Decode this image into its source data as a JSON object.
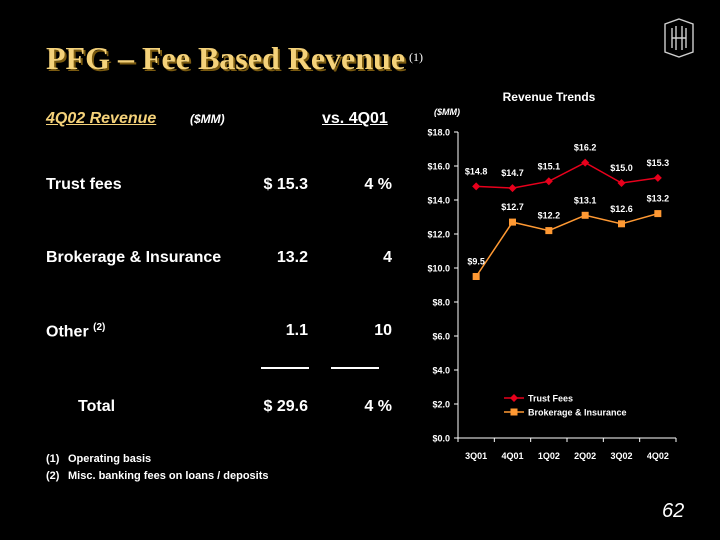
{
  "slide": {
    "title": "PFG – Fee Based Revenue",
    "title_note": "(1)",
    "page_number": "62",
    "logo_icon": "hb-monogram-icon"
  },
  "table": {
    "header_revenue": "4Q02 Revenue",
    "header_units": "($MM)",
    "header_compare": "vs. 4Q01",
    "rows": [
      {
        "label": "Trust fees",
        "note": "",
        "value": "$ 15.3",
        "change": "4 %"
      },
      {
        "label": "Brokerage & Insurance",
        "note": "",
        "value": "13.2",
        "change": "4"
      },
      {
        "label": "Other",
        "note": "(2)",
        "value": "1.1",
        "change": "10"
      },
      {
        "label": "Total",
        "note": "",
        "value": "$ 29.6",
        "change": "4 %"
      }
    ]
  },
  "footnotes": [
    {
      "num": "(1)",
      "text": "Operating basis"
    },
    {
      "num": "(2)",
      "text": "Misc. banking fees on loans / deposits"
    }
  ],
  "colors": {
    "title": "#f5d27a",
    "trust_series": "#e8001c",
    "brokerage_series": "#ff9933"
  },
  "chart_data": {
    "type": "line",
    "title": "Revenue Trends",
    "ylabel": "($MM)",
    "categories": [
      "3Q01",
      "4Q01",
      "1Q02",
      "2Q02",
      "3Q02",
      "4Q02"
    ],
    "ylim": [
      0,
      18
    ],
    "yticks": [
      0,
      2,
      4,
      6,
      8,
      10,
      12,
      14,
      16,
      18
    ],
    "ytick_labels": [
      "$0.0",
      "$2.0",
      "$4.0",
      "$6.0",
      "$8.0",
      "$10.0",
      "$12.0",
      "$14.0",
      "$16.0",
      "$18.0"
    ],
    "grid": false,
    "legend": "bottom-center inside",
    "series": [
      {
        "name": "Trust Fees",
        "values": [
          14.8,
          14.7,
          15.1,
          16.2,
          15.0,
          15.3
        ],
        "labels": [
          "$14.8",
          "$14.7",
          "$15.1",
          "$16.2",
          "$15.0",
          "$15.3"
        ],
        "marker": "diamond",
        "color": "#e8001c"
      },
      {
        "name": "Brokerage & Insurance",
        "values": [
          9.5,
          12.7,
          12.2,
          13.1,
          12.6,
          13.2
        ],
        "labels": [
          "$9.5",
          "$12.7",
          "$12.2",
          "$13.1",
          "$12.6",
          "$13.2"
        ],
        "marker": "square",
        "color": "#ff9933"
      }
    ]
  }
}
